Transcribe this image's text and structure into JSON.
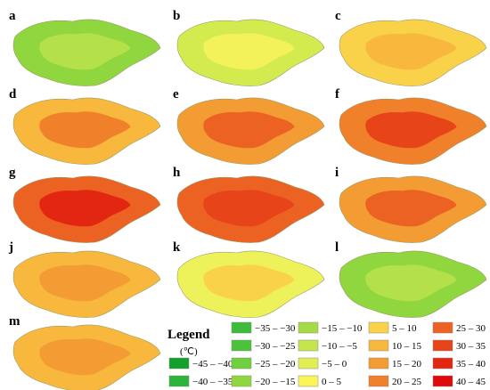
{
  "panels": [
    {
      "label": "a",
      "colors": [
        "#8fd63f",
        "#b4e04a"
      ]
    },
    {
      "label": "b",
      "colors": [
        "#d4eb4f",
        "#f4f25a"
      ]
    },
    {
      "label": "c",
      "colors": [
        "#fad24a",
        "#f7b83d"
      ]
    },
    {
      "label": "d",
      "colors": [
        "#f7b83d",
        "#f0802a"
      ]
    },
    {
      "label": "e",
      "colors": [
        "#f39c33",
        "#ec6222"
      ]
    },
    {
      "label": "f",
      "colors": [
        "#f0802a",
        "#e8441a"
      ]
    },
    {
      "label": "g",
      "colors": [
        "#ec6222",
        "#e32612"
      ]
    },
    {
      "label": "h",
      "colors": [
        "#ec6222",
        "#e8441a"
      ]
    },
    {
      "label": "i",
      "colors": [
        "#f39c33",
        "#ec6222"
      ]
    },
    {
      "label": "j",
      "colors": [
        "#f7b83d",
        "#f39c33"
      ]
    },
    {
      "label": "k",
      "colors": [
        "#eef25a",
        "#fad24a"
      ]
    },
    {
      "label": "l",
      "colors": [
        "#8fd63f",
        "#b4e04a"
      ]
    },
    {
      "label": "m",
      "colors": [
        "#f7b83d",
        "#f39c33"
      ]
    }
  ],
  "legend": {
    "title": "Legend",
    "unit": "(℃)",
    "items": [
      {
        "label": "−45 – −40",
        "color": "#14a02c"
      },
      {
        "label": "−40 – −35",
        "color": "#2db43a"
      },
      {
        "label": "−35 – −30",
        "color": "#3dbb3b"
      },
      {
        "label": "−30 – −25",
        "color": "#4cc23c"
      },
      {
        "label": "−25 – −20",
        "color": "#6fcf3e"
      },
      {
        "label": "−20 – −15",
        "color": "#8fd63f"
      },
      {
        "label": "−15 – −10",
        "color": "#a5dc45"
      },
      {
        "label": "−10 – −5",
        "color": "#c4e54c"
      },
      {
        "label": "−5 – 0",
        "color": "#e2ee55"
      },
      {
        "label": "0 – 5",
        "color": "#fbf55a"
      },
      {
        "label": "5 – 10",
        "color": "#fad24a"
      },
      {
        "label": "10 – 15",
        "color": "#f7b83d"
      },
      {
        "label": "15 – 20",
        "color": "#f39c33"
      },
      {
        "label": "20 – 25",
        "color": "#f0802a"
      },
      {
        "label": "25 – 30",
        "color": "#ec6222"
      },
      {
        "label": "30 – 35",
        "color": "#e8441a"
      },
      {
        "label": "35 – 40",
        "color": "#e32612"
      },
      {
        "label": "40 – 45",
        "color": "#df0a0a"
      }
    ]
  }
}
